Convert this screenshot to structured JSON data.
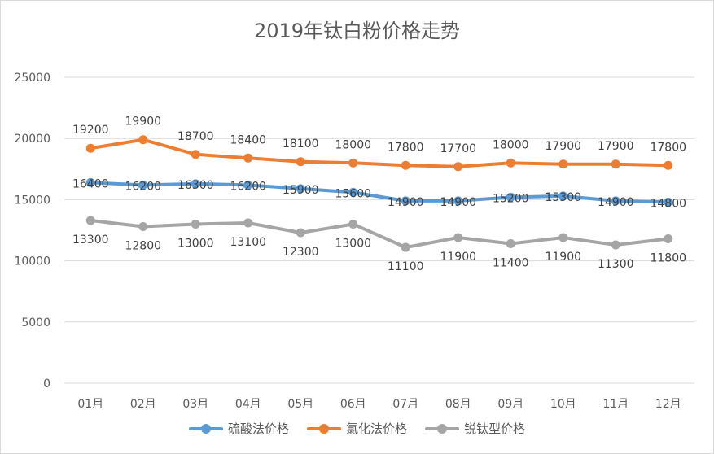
{
  "chart_data": {
    "type": "line",
    "title": "2019年钛白粉价格走势",
    "categories": [
      "01月",
      "02月",
      "03月",
      "04月",
      "05月",
      "06月",
      "07月",
      "08月",
      "09月",
      "10月",
      "11月",
      "12月"
    ],
    "ylim": [
      0,
      25000
    ],
    "yticks": [
      0,
      5000,
      10000,
      15000,
      20000,
      25000
    ],
    "grid": true,
    "legend_position": "bottom",
    "series": [
      {
        "name": "硫酸法价格",
        "color": "#5B9BD5",
        "values": [
          16400,
          16200,
          16300,
          16200,
          15900,
          15600,
          14900,
          14900,
          15200,
          15300,
          14900,
          14800
        ]
      },
      {
        "name": "氯化法价格",
        "color": "#ED7D31",
        "values": [
          19200,
          19900,
          18700,
          18400,
          18100,
          18000,
          17800,
          17700,
          18000,
          17900,
          17900,
          17800
        ]
      },
      {
        "name": "锐钛型价格",
        "color": "#A5A5A5",
        "values": [
          13300,
          12800,
          13000,
          13100,
          12300,
          13000,
          11100,
          11900,
          11400,
          11900,
          11300,
          11800
        ]
      }
    ]
  }
}
